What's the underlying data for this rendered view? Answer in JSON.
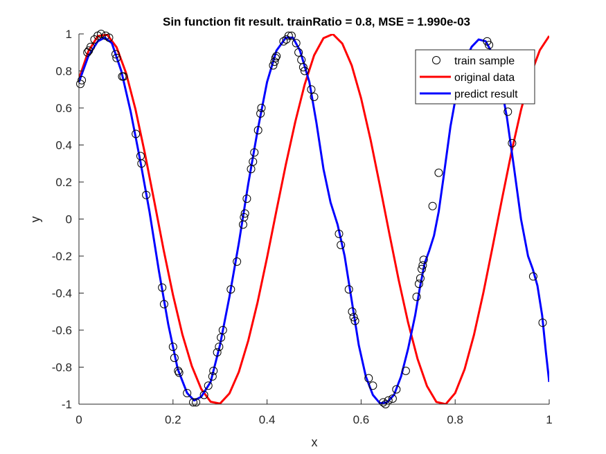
{
  "chart_data": {
    "type": "line",
    "title": "Sin function fit result. trainRatio = 0.8, MSE = 1.990e-03",
    "xlabel": "x",
    "ylabel": "y",
    "xlim": [
      0,
      1
    ],
    "ylim": [
      -1,
      1
    ],
    "xticks": [
      0,
      0.2,
      0.4,
      0.6,
      0.8,
      1
    ],
    "xtick_labels": [
      "0",
      "0.2",
      "0.4",
      "0.6",
      "0.8",
      "1"
    ],
    "yticks": [
      -1,
      -0.8,
      -0.6,
      -0.4,
      -0.2,
      0,
      0.2,
      0.4,
      0.6,
      0.8,
      1
    ],
    "ytick_labels": [
      "-1",
      "-0.8",
      "-0.6",
      "-0.4",
      "-0.2",
      "0",
      "0.2",
      "0.4",
      "0.6",
      "0.8",
      "1"
    ],
    "grid": false,
    "legend_position": "top-right",
    "legend": [
      "train sample",
      "original data",
      "predict result"
    ],
    "colors": {
      "train": "#000000",
      "original": "#ff0000",
      "predict": "#0000ff",
      "axis": "#262626"
    },
    "series": [
      {
        "name": "train sample",
        "marker": "circle",
        "points": [
          [
            0.003,
            0.73
          ],
          [
            0.006,
            0.75
          ],
          [
            0.018,
            0.9
          ],
          [
            0.021,
            0.91
          ],
          [
            0.025,
            0.93
          ],
          [
            0.033,
            0.97
          ],
          [
            0.04,
            0.99
          ],
          [
            0.047,
            1.0
          ],
          [
            0.057,
            0.99
          ],
          [
            0.064,
            0.98
          ],
          [
            0.078,
            0.89
          ],
          [
            0.08,
            0.87
          ],
          [
            0.092,
            0.77
          ],
          [
            0.095,
            0.77
          ],
          [
            0.121,
            0.46
          ],
          [
            0.131,
            0.34
          ],
          [
            0.133,
            0.3
          ],
          [
            0.143,
            0.13
          ],
          [
            0.177,
            -0.37
          ],
          [
            0.181,
            -0.46
          ],
          [
            0.2,
            -0.69
          ],
          [
            0.203,
            -0.75
          ],
          [
            0.211,
            -0.82
          ],
          [
            0.213,
            -0.83
          ],
          [
            0.23,
            -0.94
          ],
          [
            0.243,
            -0.99
          ],
          [
            0.249,
            -0.99
          ],
          [
            0.266,
            -0.95
          ],
          [
            0.275,
            -0.9
          ],
          [
            0.284,
            -0.85
          ],
          [
            0.286,
            -0.82
          ],
          [
            0.294,
            -0.72
          ],
          [
            0.298,
            -0.69
          ],
          [
            0.302,
            -0.64
          ],
          [
            0.306,
            -0.6
          ],
          [
            0.323,
            -0.38
          ],
          [
            0.336,
            -0.23
          ],
          [
            0.349,
            -0.03
          ],
          [
            0.351,
            0.01
          ],
          [
            0.353,
            0.03
          ],
          [
            0.357,
            0.11
          ],
          [
            0.366,
            0.27
          ],
          [
            0.37,
            0.31
          ],
          [
            0.373,
            0.36
          ],
          [
            0.381,
            0.48
          ],
          [
            0.386,
            0.57
          ],
          [
            0.388,
            0.6
          ],
          [
            0.413,
            0.83
          ],
          [
            0.416,
            0.85
          ],
          [
            0.418,
            0.87
          ],
          [
            0.42,
            0.88
          ],
          [
            0.435,
            0.96
          ],
          [
            0.441,
            0.97
          ],
          [
            0.446,
            0.99
          ],
          [
            0.452,
            0.99
          ],
          [
            0.462,
            0.95
          ],
          [
            0.467,
            0.9
          ],
          [
            0.473,
            0.86
          ],
          [
            0.477,
            0.82
          ],
          [
            0.48,
            0.8
          ],
          [
            0.494,
            0.7
          ],
          [
            0.5,
            0.66
          ],
          [
            0.553,
            -0.08
          ],
          [
            0.557,
            -0.14
          ],
          [
            0.574,
            -0.38
          ],
          [
            0.581,
            -0.5
          ],
          [
            0.584,
            -0.53
          ],
          [
            0.587,
            -0.55
          ],
          [
            0.616,
            -0.86
          ],
          [
            0.625,
            -0.9
          ],
          [
            0.647,
            -0.99
          ],
          [
            0.652,
            -1.0
          ],
          [
            0.658,
            -0.98
          ],
          [
            0.667,
            -0.97
          ],
          [
            0.675,
            -0.92
          ],
          [
            0.695,
            -0.82
          ],
          [
            0.718,
            -0.42
          ],
          [
            0.723,
            -0.35
          ],
          [
            0.726,
            -0.32
          ],
          [
            0.729,
            -0.27
          ],
          [
            0.731,
            -0.25
          ],
          [
            0.733,
            -0.22
          ],
          [
            0.752,
            0.07
          ],
          [
            0.765,
            0.25
          ],
          [
            0.868,
            0.96
          ],
          [
            0.872,
            0.94
          ],
          [
            0.912,
            0.58
          ],
          [
            0.921,
            0.41
          ],
          [
            0.966,
            -0.31
          ],
          [
            0.986,
            -0.56
          ]
        ]
      },
      {
        "name": "original data",
        "curve": "sin(2*pi*1.25*x + 0.86)",
        "points": [
          [
            0,
            0.758
          ],
          [
            0.02,
            0.906
          ],
          [
            0.04,
            0.988
          ],
          [
            0.06,
            0.996
          ],
          [
            0.08,
            0.928
          ],
          [
            0.1,
            0.79
          ],
          [
            0.12,
            0.595
          ],
          [
            0.14,
            0.357
          ],
          [
            0.16,
            0.098
          ],
          [
            0.18,
            -0.166
          ],
          [
            0.2,
            -0.41
          ],
          [
            0.22,
            -0.624
          ],
          [
            0.24,
            -0.794
          ],
          [
            0.26,
            -0.918
          ],
          [
            0.28,
            -0.987
          ],
          [
            0.3,
            -0.997
          ],
          [
            0.32,
            -0.942
          ],
          [
            0.34,
            -0.826
          ],
          [
            0.36,
            -0.657
          ],
          [
            0.38,
            -0.448
          ],
          [
            0.4,
            -0.208
          ],
          [
            0.42,
            0.046
          ],
          [
            0.44,
            0.295
          ],
          [
            0.46,
            0.525
          ],
          [
            0.48,
            0.727
          ],
          [
            0.5,
            0.884
          ],
          [
            0.52,
            0.977
          ],
          [
            0.54,
            0.999
          ],
          [
            0.56,
            0.948
          ],
          [
            0.58,
            0.83
          ],
          [
            0.6,
            0.652
          ],
          [
            0.62,
            0.43
          ],
          [
            0.64,
            0.18
          ],
          [
            0.66,
            -0.078
          ],
          [
            0.68,
            -0.33
          ],
          [
            0.7,
            -0.56
          ],
          [
            0.72,
            -0.755
          ],
          [
            0.74,
            -0.902
          ],
          [
            0.76,
            -0.988
          ],
          [
            0.78,
            -1.0
          ],
          [
            0.8,
            -0.94
          ],
          [
            0.82,
            -0.812
          ],
          [
            0.84,
            -0.626
          ],
          [
            0.86,
            -0.398
          ],
          [
            0.88,
            -0.145
          ],
          [
            0.9,
            0.113
          ],
          [
            0.92,
            0.364
          ],
          [
            0.94,
            0.589
          ],
          [
            0.96,
            0.776
          ],
          [
            0.98,
            0.912
          ],
          [
            1.0,
            0.989
          ]
        ]
      },
      {
        "name": "predict result",
        "points": [
          [
            0,
            0.74
          ],
          [
            0.02,
            0.88
          ],
          [
            0.04,
            0.96
          ],
          [
            0.055,
            0.98
          ],
          [
            0.07,
            0.95
          ],
          [
            0.09,
            0.8
          ],
          [
            0.11,
            0.58
          ],
          [
            0.13,
            0.32
          ],
          [
            0.15,
            0.04
          ],
          [
            0.17,
            -0.28
          ],
          [
            0.19,
            -0.57
          ],
          [
            0.21,
            -0.81
          ],
          [
            0.23,
            -0.94
          ],
          [
            0.245,
            -0.98
          ],
          [
            0.26,
            -0.96
          ],
          [
            0.28,
            -0.88
          ],
          [
            0.3,
            -0.68
          ],
          [
            0.32,
            -0.42
          ],
          [
            0.34,
            -0.13
          ],
          [
            0.36,
            0.19
          ],
          [
            0.38,
            0.48
          ],
          [
            0.4,
            0.74
          ],
          [
            0.42,
            0.91
          ],
          [
            0.44,
            0.98
          ],
          [
            0.455,
            0.98
          ],
          [
            0.47,
            0.91
          ],
          [
            0.49,
            0.74
          ],
          [
            0.505,
            0.52
          ],
          [
            0.52,
            0.27
          ],
          [
            0.535,
            0.09
          ],
          [
            0.55,
            -0.03
          ],
          [
            0.565,
            -0.2
          ],
          [
            0.58,
            -0.44
          ],
          [
            0.595,
            -0.68
          ],
          [
            0.61,
            -0.85
          ],
          [
            0.625,
            -0.95
          ],
          [
            0.64,
            -0.995
          ],
          [
            0.655,
            -0.99
          ],
          [
            0.67,
            -0.95
          ],
          [
            0.685,
            -0.85
          ],
          [
            0.7,
            -0.7
          ],
          [
            0.715,
            -0.52
          ],
          [
            0.725,
            -0.37
          ],
          [
            0.735,
            -0.24
          ],
          [
            0.745,
            -0.17
          ],
          [
            0.755,
            -0.09
          ],
          [
            0.765,
            0.04
          ],
          [
            0.775,
            0.22
          ],
          [
            0.79,
            0.5
          ],
          [
            0.805,
            0.71
          ],
          [
            0.82,
            0.85
          ],
          [
            0.835,
            0.93
          ],
          [
            0.85,
            0.97
          ],
          [
            0.865,
            0.96
          ],
          [
            0.88,
            0.89
          ],
          [
            0.895,
            0.76
          ],
          [
            0.91,
            0.55
          ],
          [
            0.925,
            0.28
          ],
          [
            0.94,
            0.0
          ],
          [
            0.955,
            -0.2
          ],
          [
            0.965,
            -0.27
          ],
          [
            0.975,
            -0.36
          ],
          [
            0.985,
            -0.52
          ],
          [
            0.993,
            -0.72
          ],
          [
            1.0,
            -0.88
          ]
        ]
      }
    ]
  }
}
